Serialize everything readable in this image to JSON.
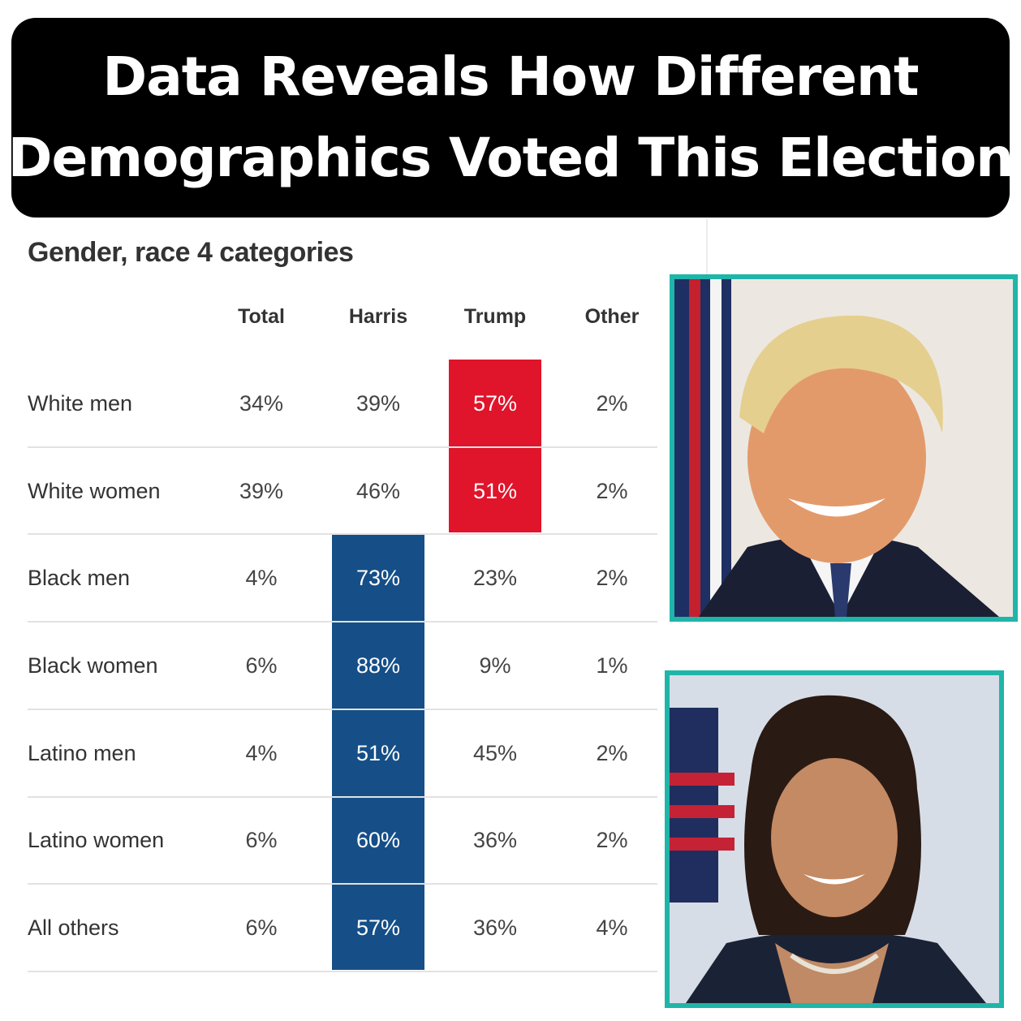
{
  "banner": {
    "line1": "Data Reveals How Different",
    "line2": "Demographics Voted This Election"
  },
  "chart_data": {
    "type": "table",
    "title": "Gender, race 4 categories",
    "columns": [
      "Total",
      "Harris",
      "Trump",
      "Other"
    ],
    "rows": [
      {
        "label": "White men",
        "values": [
          "34%",
          "39%",
          "57%",
          "2%"
        ]
      },
      {
        "label": "White women",
        "values": [
          "39%",
          "46%",
          "51%",
          "2%"
        ]
      },
      {
        "label": "Black men",
        "values": [
          "4%",
          "73%",
          "23%",
          "2%"
        ]
      },
      {
        "label": "Black women",
        "values": [
          "6%",
          "88%",
          "9%",
          "1%"
        ]
      },
      {
        "label": "Latino men",
        "values": [
          "4%",
          "51%",
          "45%",
          "2%"
        ]
      },
      {
        "label": "Latino women",
        "values": [
          "6%",
          "60%",
          "36%",
          "2%"
        ]
      },
      {
        "label": "All others",
        "values": [
          "6%",
          "57%",
          "36%",
          "4%"
        ]
      }
    ],
    "highlight_colors": {
      "Trump": "#e0142a",
      "Harris": "#164f87"
    },
    "winner_column": [
      "Trump",
      "Trump",
      "Harris",
      "Harris",
      "Harris",
      "Harris",
      "Harris"
    ]
  },
  "photos": {
    "top": "portrait-of-trump",
    "bottom": "portrait-of-harris",
    "frame_color": "#1fb5a8"
  }
}
